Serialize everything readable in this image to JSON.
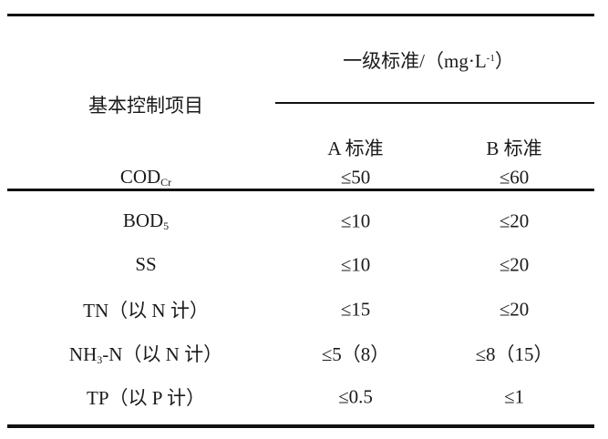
{
  "table": {
    "header": {
      "item_col": "基本控制项目",
      "group_title": "一级标准/（mg·L",
      "group_unit_sup": "-1",
      "group_close": "）",
      "col_a": "A 标准",
      "col_b": "B 标准"
    },
    "rows": [
      {
        "name": "COD",
        "sub": "Cr",
        "suffix": "",
        "a": "≤50",
        "b": "≤60"
      },
      {
        "name": "BOD",
        "sub": "5",
        "suffix": "",
        "a": "≤10",
        "b": "≤20"
      },
      {
        "name": "SS",
        "sub": "",
        "suffix": "",
        "a": "≤10",
        "b": "≤20"
      },
      {
        "name": "TN（以 N 计）",
        "sub": "",
        "suffix": "",
        "a": "≤15",
        "b": "≤20"
      },
      {
        "name": "NH",
        "sub": "3",
        "suffix": "-N（以 N 计）",
        "a": "≤5（8）",
        "b": "≤8（15）"
      },
      {
        "name": "TP（以 P 计）",
        "sub": "",
        "suffix": "",
        "a": "≤0.5",
        "b": "≤1"
      }
    ]
  }
}
